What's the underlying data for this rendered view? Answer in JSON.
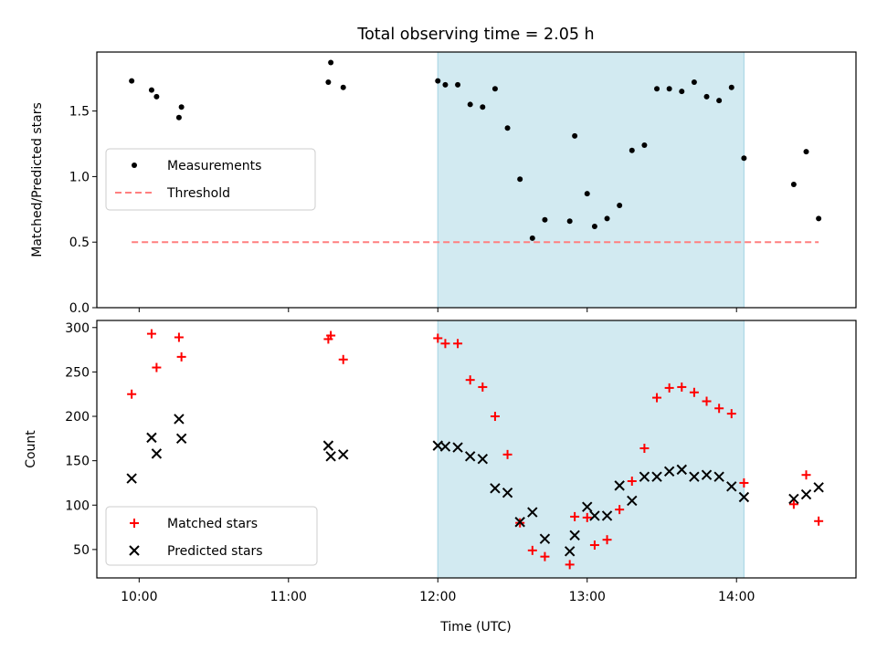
{
  "title": "Total observing time = 2.05 h",
  "xlabel": "Time (UTC)",
  "x_ticks": [
    "10:00",
    "11:00",
    "12:00",
    "13:00",
    "14:00"
  ],
  "colors": {
    "shade": "#add8e6",
    "measurement": "#000000",
    "threshold": "#ff7f7f",
    "matched": "#ff0000",
    "predicted": "#000000"
  },
  "chart_data": [
    {
      "type": "scatter",
      "panel": "top",
      "ylabel": "Matched/Predicted stars",
      "ylim": [
        0,
        1.95
      ],
      "xlim": [
        "09:43",
        "14:48"
      ],
      "y_ticks": [
        "0.0",
        "0.5",
        "1.0",
        "1.5"
      ],
      "y_tick_values": [
        0,
        0.5,
        1.0,
        1.5
      ],
      "shaded_interval": [
        "12:00",
        "14:03"
      ],
      "legend": "center-left",
      "series": [
        {
          "name": "Measurements",
          "marker": "dot",
          "points": [
            [
              "09:57",
              1.73
            ],
            [
              "10:05",
              1.66
            ],
            [
              "10:07",
              1.61
            ],
            [
              "10:16",
              1.45
            ],
            [
              "10:17",
              1.53
            ],
            [
              "11:16",
              1.72
            ],
            [
              "11:17",
              1.87
            ],
            [
              "11:22",
              1.68
            ],
            [
              "12:00",
              1.73
            ],
            [
              "12:03",
              1.7
            ],
            [
              "12:08",
              1.7
            ],
            [
              "12:13",
              1.55
            ],
            [
              "12:18",
              1.53
            ],
            [
              "12:23",
              1.67
            ],
            [
              "12:28",
              1.37
            ],
            [
              "12:33",
              0.98
            ],
            [
              "12:38",
              0.53
            ],
            [
              "12:43",
              0.67
            ],
            [
              "12:53",
              0.66
            ],
            [
              "12:55",
              1.31
            ],
            [
              "13:00",
              0.87
            ],
            [
              "13:03",
              0.62
            ],
            [
              "13:08",
              0.68
            ],
            [
              "13:13",
              0.78
            ],
            [
              "13:18",
              1.2
            ],
            [
              "13:23",
              1.24
            ],
            [
              "13:28",
              1.67
            ],
            [
              "13:33",
              1.67
            ],
            [
              "13:38",
              1.65
            ],
            [
              "13:43",
              1.72
            ],
            [
              "13:48",
              1.61
            ],
            [
              "13:53",
              1.58
            ],
            [
              "13:58",
              1.68
            ],
            [
              "14:03",
              1.14
            ],
            [
              "14:23",
              0.94
            ],
            [
              "14:28",
              1.19
            ],
            [
              "14:33",
              0.68
            ]
          ]
        },
        {
          "name": "Threshold",
          "marker": "dashed-line",
          "points": [
            [
              "09:57",
              0.5
            ],
            [
              "14:33",
              0.5
            ]
          ]
        }
      ]
    },
    {
      "type": "scatter",
      "panel": "bottom",
      "ylabel": "Count",
      "ylim": [
        18,
        308
      ],
      "xlim": [
        "09:43",
        "14:48"
      ],
      "y_ticks": [
        "50",
        "100",
        "150",
        "200",
        "250",
        "300"
      ],
      "y_tick_values": [
        50,
        100,
        150,
        200,
        250,
        300
      ],
      "shaded_interval": [
        "12:00",
        "14:03"
      ],
      "legend": "lower-left",
      "series": [
        {
          "name": "Matched stars",
          "marker": "plus",
          "points": [
            [
              "09:57",
              225
            ],
            [
              "10:05",
              293
            ],
            [
              "10:07",
              255
            ],
            [
              "10:16",
              289
            ],
            [
              "10:17",
              267
            ],
            [
              "11:16",
              287
            ],
            [
              "11:17",
              291
            ],
            [
              "11:22",
              264
            ],
            [
              "12:00",
              288
            ],
            [
              "12:03",
              282
            ],
            [
              "12:08",
              282
            ],
            [
              "12:13",
              241
            ],
            [
              "12:18",
              233
            ],
            [
              "12:23",
              200
            ],
            [
              "12:28",
              157
            ],
            [
              "12:33",
              80
            ],
            [
              "12:38",
              49
            ],
            [
              "12:43",
              42
            ],
            [
              "12:53",
              33
            ],
            [
              "12:55",
              87
            ],
            [
              "13:00",
              86
            ],
            [
              "13:03",
              55
            ],
            [
              "13:08",
              61
            ],
            [
              "13:13",
              95
            ],
            [
              "13:18",
              127
            ],
            [
              "13:23",
              164
            ],
            [
              "13:28",
              221
            ],
            [
              "13:33",
              232
            ],
            [
              "13:38",
              233
            ],
            [
              "13:43",
              227
            ],
            [
              "13:48",
              217
            ],
            [
              "13:53",
              209
            ],
            [
              "13:58",
              203
            ],
            [
              "14:03",
              125
            ],
            [
              "14:23",
              101
            ],
            [
              "14:28",
              134
            ],
            [
              "14:33",
              82
            ]
          ]
        },
        {
          "name": "Predicted stars",
          "marker": "x",
          "points": [
            [
              "09:57",
              130
            ],
            [
              "10:05",
              176
            ],
            [
              "10:07",
              158
            ],
            [
              "10:16",
              197
            ],
            [
              "10:17",
              175
            ],
            [
              "11:16",
              167
            ],
            [
              "11:17",
              155
            ],
            [
              "11:22",
              157
            ],
            [
              "12:00",
              167
            ],
            [
              "12:03",
              166
            ],
            [
              "12:08",
              165
            ],
            [
              "12:13",
              155
            ],
            [
              "12:18",
              152
            ],
            [
              "12:23",
              119
            ],
            [
              "12:28",
              114
            ],
            [
              "12:33",
              81
            ],
            [
              "12:38",
              92
            ],
            [
              "12:43",
              62
            ],
            [
              "12:53",
              48
            ],
            [
              "12:55",
              66
            ],
            [
              "13:00",
              98
            ],
            [
              "13:03",
              88
            ],
            [
              "13:08",
              88
            ],
            [
              "13:13",
              122
            ],
            [
              "13:18",
              105
            ],
            [
              "13:23",
              132
            ],
            [
              "13:28",
              132
            ],
            [
              "13:33",
              138
            ],
            [
              "13:38",
              140
            ],
            [
              "13:43",
              132
            ],
            [
              "13:48",
              134
            ],
            [
              "13:53",
              132
            ],
            [
              "13:58",
              121
            ],
            [
              "14:03",
              109
            ],
            [
              "14:23",
              107
            ],
            [
              "14:28",
              112
            ],
            [
              "14:33",
              120
            ]
          ]
        }
      ]
    }
  ]
}
